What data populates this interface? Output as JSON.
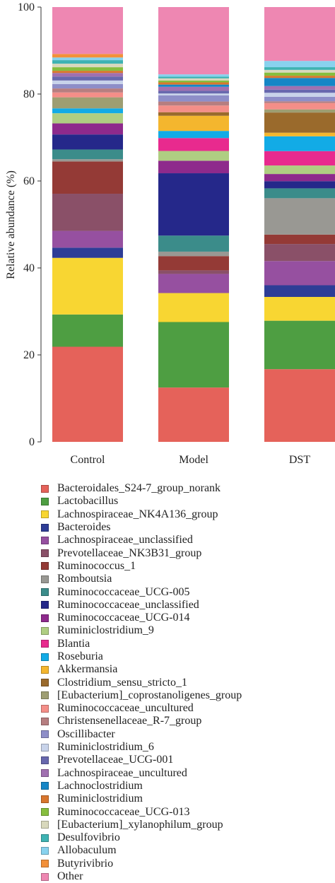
{
  "chart_data": {
    "type": "bar",
    "stacked": true,
    "ylabel": "Relative abundance (%)",
    "xlabel": "",
    "ylim": [
      0,
      100
    ],
    "yticks": [
      0,
      20,
      40,
      60,
      80,
      100
    ],
    "grid": false,
    "legend_position": "bottom",
    "categories": [
      "Control",
      "Model",
      "DST"
    ],
    "series": [
      {
        "name": "Bacteroidales_S24-7_group_norank",
        "color": "#E5625A",
        "values": [
          21.5,
          12.2,
          16.2
        ]
      },
      {
        "name": "Lactobacillus",
        "color": "#4E9E42",
        "values": [
          7.3,
          14.7,
          10.8
        ]
      },
      {
        "name": "Lachnospiraceae_NK4A136_group",
        "color": "#F8D632",
        "values": [
          12.8,
          6.5,
          5.3
        ]
      },
      {
        "name": "Bacteroides",
        "color": "#2E3D96",
        "values": [
          2.3,
          0.0,
          2.6
        ]
      },
      {
        "name": "Lachnospiraceae_unclassified",
        "color": "#9650A0",
        "values": [
          3.8,
          4.3,
          5.4
        ]
      },
      {
        "name": "Prevotellaceae_NK3B31_group",
        "color": "#8A5068",
        "values": [
          8.4,
          0.8,
          3.8
        ]
      },
      {
        "name": "Ruminococcus_1",
        "color": "#943A36",
        "values": [
          7.3,
          3.2,
          2.1
        ]
      },
      {
        "name": "Romboutsia",
        "color": "#999893",
        "values": [
          0.5,
          1.0,
          8.1
        ]
      },
      {
        "name": "Ruminococcaceae_UCG-005",
        "color": "#3B8C8A",
        "values": [
          2.2,
          3.6,
          2.2
        ]
      },
      {
        "name": "Ruminococcaceae_unclassified",
        "color": "#25288A",
        "values": [
          3.4,
          14.0,
          1.6
        ]
      },
      {
        "name": "Ruminococcaceae_UCG-014",
        "color": "#8E2A8C",
        "values": [
          2.5,
          2.8,
          1.6
        ]
      },
      {
        "name": "Ruminiclostridium_9",
        "color": "#AFCE82",
        "values": [
          2.3,
          2.2,
          1.9
        ]
      },
      {
        "name": "Blantia",
        "color": "#E82A8E",
        "values": [
          0.0,
          2.9,
          3.2
        ]
      },
      {
        "name": "Roseburia",
        "color": "#12ABE6",
        "values": [
          1.1,
          1.6,
          3.3
        ]
      },
      {
        "name": "Akkermansia",
        "color": "#F4B62E",
        "values": [
          0.0,
          3.4,
          0.8
        ]
      },
      {
        "name": "Clostridium_sensu_stricto_1",
        "color": "#9A6A2C",
        "values": [
          0.0,
          0.8,
          4.5
        ]
      },
      {
        "name": "[Eubacterium]_coprostanoligenes_group",
        "color": "#9E9E72",
        "values": [
          2.5,
          0.0,
          0.7
        ]
      },
      {
        "name": "Ruminococcaceae_uncultured",
        "color": "#F48E88",
        "values": [
          1.1,
          1.5,
          1.4
        ]
      },
      {
        "name": "Christensenellaceae_R-7_group",
        "color": "#B67E80",
        "values": [
          0.9,
          0.9,
          0.4
        ]
      },
      {
        "name": "Oscillibacter",
        "color": "#8E8EC8",
        "values": [
          1.0,
          1.4,
          1.0
        ]
      },
      {
        "name": "Ruminiclostridium_6",
        "color": "#C8D3EA",
        "values": [
          0.8,
          0.4,
          0.9
        ]
      },
      {
        "name": "Prevotellaceae_UCG-001",
        "color": "#6868AE",
        "values": [
          0.9,
          0.6,
          0.7
        ]
      },
      {
        "name": "Lachnospiraceae_uncultured",
        "color": "#A070B0",
        "values": [
          0.8,
          0.9,
          0.8
        ]
      },
      {
        "name": "Lachnoclostridium",
        "color": "#1686C6",
        "values": [
          0.0,
          0.5,
          1.8
        ]
      },
      {
        "name": "Ruminiclostridium",
        "color": "#D8762E",
        "values": [
          0.5,
          0.5,
          0.5
        ]
      },
      {
        "name": "Ruminococcaceae_UCG-013",
        "color": "#86BE3E",
        "values": [
          0.8,
          0.4,
          0.7
        ]
      },
      {
        "name": "[Eubacterium]_xylanophilum_group",
        "color": "#D8D8BC",
        "values": [
          0.8,
          0.5,
          0.6
        ]
      },
      {
        "name": "Desulfovibrio",
        "color": "#3EB3B3",
        "values": [
          0.8,
          0.4,
          0.6
        ]
      },
      {
        "name": "Allobaculum",
        "color": "#88D2EE",
        "values": [
          0.6,
          0.5,
          1.4
        ]
      },
      {
        "name": "Butyrivibrio",
        "color": "#F2903A",
        "values": [
          0.8,
          0.0,
          0.0
        ]
      },
      {
        "name": "Other",
        "color": "#EE87B2",
        "values": [
          10.6,
          15.1,
          12.0
        ]
      }
    ]
  }
}
